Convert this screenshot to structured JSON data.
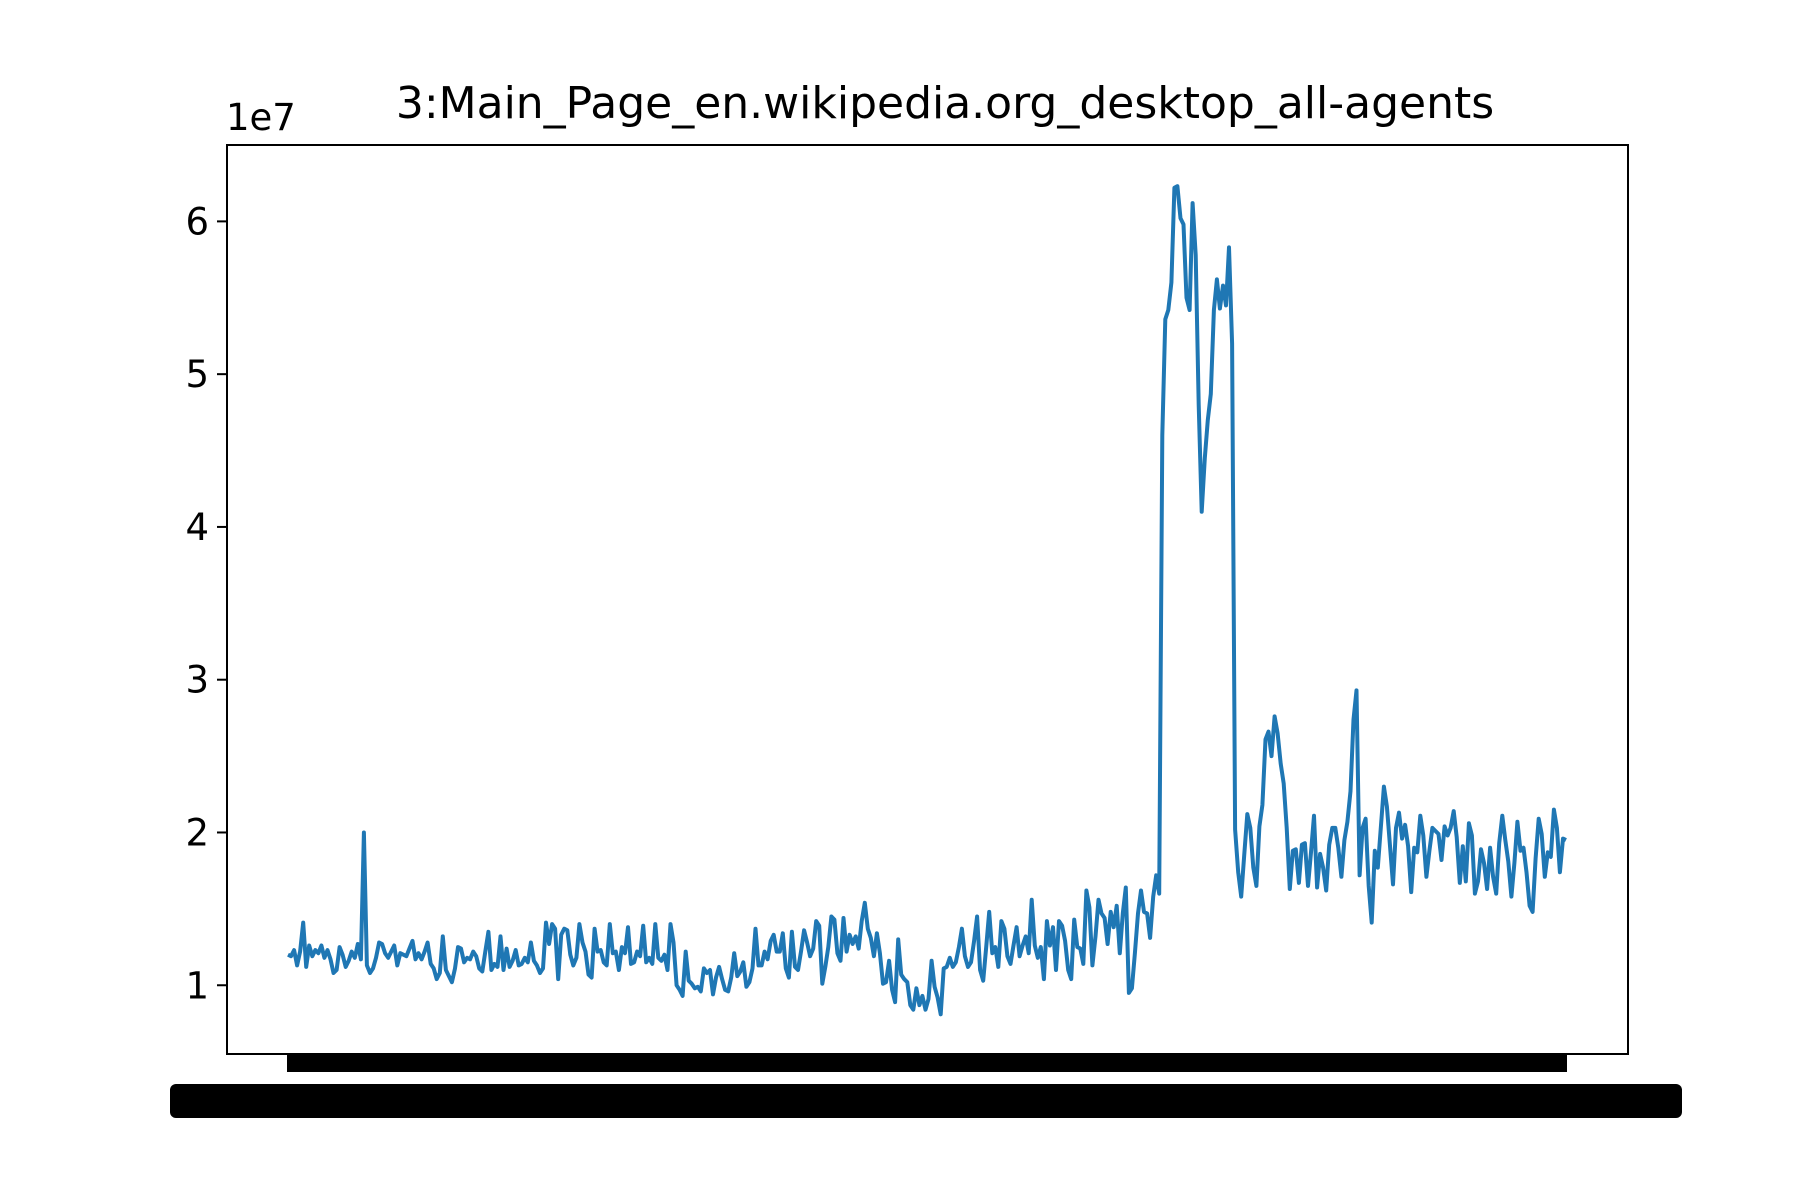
{
  "chart_data": {
    "type": "line",
    "title": "3:Main_Page_en.wikipedia.org_desktop_all-agents",
    "offset_label": "1e7",
    "xlabel": "",
    "ylabel": "",
    "x_tick_labels_overplotted": true,
    "grid": false,
    "legend": "none",
    "ylim": [
      5500000,
      65000000
    ],
    "yticks": [
      10000000,
      20000000,
      30000000,
      40000000,
      50000000,
      60000000
    ],
    "ytick_labels": [
      "1",
      "2",
      "3",
      "4",
      "5",
      "6"
    ],
    "color": "#1f77b4",
    "series": [
      {
        "values": [
          12000000,
          11900000,
          12300000,
          11300000,
          12200000,
          14100000,
          11200000,
          12600000,
          11900000,
          12300000,
          12100000,
          12600000,
          11800000,
          12300000,
          11700000,
          10800000,
          11000000,
          12500000,
          12000000,
          11200000,
          11600000,
          12200000,
          11800000,
          12700000,
          11700000,
          20000000,
          11300000,
          10800000,
          11100000,
          11800000,
          12800000,
          12700000,
          12100000,
          11800000,
          12200000,
          12600000,
          11300000,
          12100000,
          12000000,
          11900000,
          12400000,
          12900000,
          11700000,
          12100000,
          11700000,
          12200000,
          12800000,
          11400000,
          11100000,
          10400000,
          10800000,
          13200000,
          11000000,
          10600000,
          10200000,
          11100000,
          12500000,
          12400000,
          11500000,
          11800000,
          11700000,
          12200000,
          11900000,
          11100000,
          10900000,
          12200000,
          13500000,
          11000000,
          11400000,
          11200000,
          13200000,
          11000000,
          12400000,
          11200000,
          11600000,
          12300000,
          11300000,
          11400000,
          11800000,
          11500000,
          12800000,
          11600000,
          11300000,
          10800000,
          11100000,
          14100000,
          12700000,
          14000000,
          13700000,
          10400000,
          13300000,
          13700000,
          13600000,
          12000000,
          11300000,
          11800000,
          14000000,
          12800000,
          12200000,
          10700000,
          10500000,
          13700000,
          12200000,
          12300000,
          11500000,
          11300000,
          14000000,
          12100000,
          12200000,
          11000000,
          12500000,
          12100000,
          13800000,
          11400000,
          11500000,
          12200000,
          11900000,
          13900000,
          11500000,
          11800000,
          11400000,
          14000000,
          11800000,
          11600000,
          12000000,
          11000000,
          14000000,
          12800000,
          10000000,
          9700000,
          9300000,
          12200000,
          10300000,
          10100000,
          9800000,
          9900000,
          9600000,
          11100000,
          10800000,
          11000000,
          9400000,
          10500000,
          11200000,
          10400000,
          9700000,
          9600000,
          10500000,
          12100000,
          10600000,
          10900000,
          11500000,
          9900000,
          10200000,
          11100000,
          13700000,
          11300000,
          11300000,
          12200000,
          11700000,
          12900000,
          13300000,
          12200000,
          12200000,
          13400000,
          11100000,
          10500000,
          13500000,
          11200000,
          11000000,
          12200000,
          13600000,
          12800000,
          11900000,
          12400000,
          14200000,
          13900000,
          10100000,
          11200000,
          12500000,
          14500000,
          14300000,
          12100000,
          11600000,
          14400000,
          12200000,
          13300000,
          12700000,
          13200000,
          12400000,
          14200000,
          15400000,
          13700000,
          13100000,
          11900000,
          13400000,
          12100000,
          10100000,
          10200000,
          11600000,
          9700000,
          8900000,
          13000000,
          10700000,
          10400000,
          10200000,
          8700000,
          8400000,
          9800000,
          8700000,
          9300000,
          8400000,
          9100000,
          11600000,
          9900000,
          9200000,
          8100000,
          11100000,
          11200000,
          11800000,
          11200000,
          11500000,
          12500000,
          13700000,
          11900000,
          11200000,
          11500000,
          12900000,
          14500000,
          11000000,
          10300000,
          12500000,
          14800000,
          12100000,
          12500000,
          11200000,
          14200000,
          13700000,
          11900000,
          11400000,
          12600000,
          13800000,
          11900000,
          12600000,
          13200000,
          12100000,
          15600000,
          12600000,
          11800000,
          12500000,
          10400000,
          14200000,
          12600000,
          13800000,
          11000000,
          14200000,
          13900000,
          12900000,
          11000000,
          10400000,
          14300000,
          12500000,
          12400000,
          11400000,
          16200000,
          15100000,
          11300000,
          13200000,
          15600000,
          14700000,
          14400000,
          12700000,
          14800000,
          13800000,
          15200000,
          12100000,
          14700000,
          16400000,
          9500000,
          9800000,
          12100000,
          14700000,
          16200000,
          14800000,
          14700000,
          13100000,
          15800000,
          17200000,
          16000000,
          46000000,
          53600000,
          54200000,
          56000000,
          62200000,
          62300000,
          60200000,
          59800000,
          55000000,
          54200000,
          61200000,
          57800000,
          48000000,
          41000000,
          44500000,
          47000000,
          48700000,
          54200000,
          56200000,
          54300000,
          55800000,
          54500000,
          58300000,
          52000000,
          20200000,
          17400000,
          15800000,
          18500000,
          21200000,
          20300000,
          17700000,
          16500000,
          20400000,
          21800000,
          26100000,
          26600000,
          25000000,
          27600000,
          26500000,
          24500000,
          23200000,
          20300000,
          16300000,
          18800000,
          18900000,
          16700000,
          19200000,
          19300000,
          16500000,
          18700000,
          21100000,
          16400000,
          18600000,
          17700000,
          16200000,
          19200000,
          20300000,
          20300000,
          19000000,
          17100000,
          19500000,
          20700000,
          22700000,
          27400000,
          29300000,
          17200000,
          20300000,
          20900000,
          16500000,
          14100000,
          18800000,
          17700000,
          20300000,
          23000000,
          21700000,
          19200000,
          16600000,
          20300000,
          21300000,
          19600000,
          20500000,
          19100000,
          16100000,
          19000000,
          18700000,
          21100000,
          19800000,
          17100000,
          18800000,
          20300000,
          20100000,
          19900000,
          18200000,
          20400000,
          19800000,
          20300000,
          21400000,
          19700000,
          16700000,
          19100000,
          16800000,
          20600000,
          19800000,
          16000000,
          16800000,
          18900000,
          18000000,
          16300000,
          19000000,
          17100000,
          16000000,
          19300000,
          21100000,
          19500000,
          18100000,
          15800000,
          18000000,
          20700000,
          18800000,
          19000000,
          17400000,
          15200000,
          14800000,
          18300000,
          20900000,
          19900000,
          17100000,
          18700000,
          18400000,
          21500000,
          20300000,
          17400000,
          19600000,
          19500000
        ]
      }
    ]
  }
}
